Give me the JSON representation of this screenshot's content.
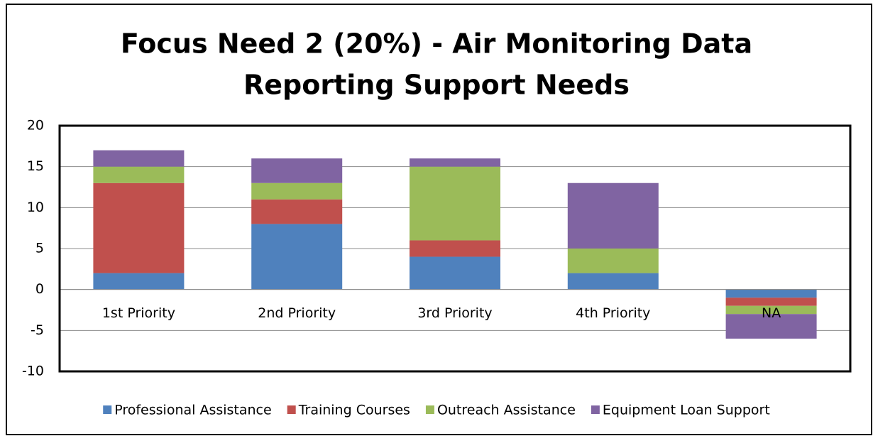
{
  "chart_data": {
    "type": "stacked_bar",
    "title": [
      "Focus Need 2 (20%) - Air Monitoring Data",
      "Reporting Support Needs"
    ],
    "categories": [
      "1st Priority",
      "2nd Priority",
      "3rd Priority",
      "4th Priority",
      "NA"
    ],
    "series": [
      {
        "name": "Professional Assistance",
        "color": "#4f81bd",
        "values": [
          2,
          8,
          4,
          2,
          -1
        ]
      },
      {
        "name": "Training Courses",
        "color": "#c0504d",
        "values": [
          11,
          3,
          2,
          0,
          -1
        ]
      },
      {
        "name": "Outreach Assistance",
        "color": "#9bbb59",
        "values": [
          2,
          2,
          9,
          3,
          -1
        ]
      },
      {
        "name": "Equipment Loan Support",
        "color": "#8064a2",
        "values": [
          2,
          3,
          1,
          8,
          -3
        ]
      }
    ],
    "ylim": [
      -10,
      20
    ],
    "yticks": [
      -10,
      -5,
      0,
      5,
      10,
      15,
      20
    ],
    "grid": true,
    "legend": "bottom"
  }
}
